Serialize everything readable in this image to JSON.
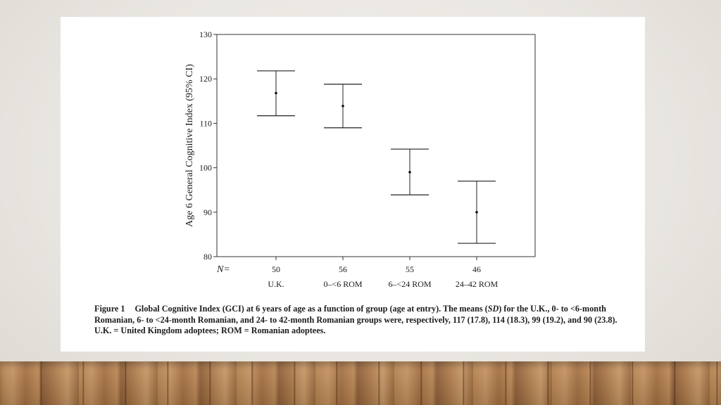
{
  "slide": {
    "colors": {
      "background": "#e9e6e1",
      "floor": "#b98550",
      "card": "#ffffff",
      "ink": "#1a1a1a"
    }
  },
  "chart_data": {
    "type": "error_bar",
    "title": "",
    "xlabel": "",
    "ylabel": "Age 6 General Cognitive Index (95% CI)",
    "ylim": [
      80,
      130
    ],
    "yticks": [
      80,
      90,
      100,
      110,
      120,
      130
    ],
    "n_label": "N=",
    "categories": [
      "U.K.",
      "0–<6 ROM",
      "6–<24 ROM",
      "24–42 ROM"
    ],
    "n_values": [
      "50",
      "56",
      "55",
      "46"
    ],
    "means": [
      116.8,
      113.9,
      99.0,
      90.0
    ],
    "ci_lower": [
      111.7,
      109.0,
      93.9,
      83.0
    ],
    "ci_upper": [
      121.8,
      118.8,
      104.2,
      97.0
    ],
    "grid": false
  },
  "caption": {
    "label": "Figure 1",
    "line1": "Global Cognitive Index (GCI) at 6 years of age as a function of group (age at entry). The means (",
    "sd": "SD",
    "line1b": ") for the U.K., 0- to <6-month Romanian, 6- to <24-month Romanian, and 24- to 42-month Romanian groups were, respectively, 117 (17.8), 114 (18.3), 99 (19.2), and 90 (23.8). U.K. = United Kingdom adoptees; ROM = Romanian adoptees."
  }
}
